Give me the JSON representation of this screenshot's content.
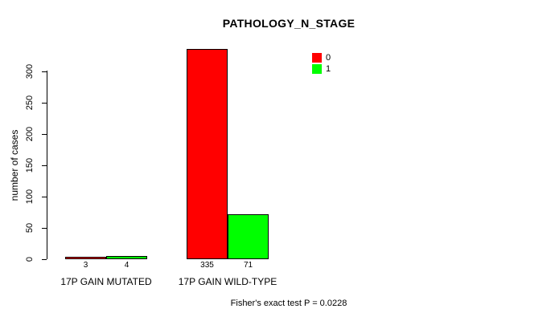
{
  "chart": {
    "title": "PATHOLOGY_N_STAGE",
    "ylabel": "number of cases",
    "footnote": "Fisher's exact test P = 0.0228"
  },
  "chart_data": {
    "type": "bar",
    "title": "PATHOLOGY_N_STAGE",
    "xlabel": "",
    "ylabel": "number of cases",
    "categories": [
      "17P GAIN MUTATED",
      "17P GAIN WILD-TYPE"
    ],
    "series": [
      {
        "name": "0",
        "color": "#ff0000",
        "values": [
          3,
          335
        ]
      },
      {
        "name": "1",
        "color": "#00ff00",
        "values": [
          4,
          71
        ]
      }
    ],
    "bar_labels_shown": true,
    "yticks": [
      0,
      50,
      100,
      150,
      200,
      250,
      300
    ],
    "ylim": [
      0,
      340
    ],
    "grid": false,
    "legend": {
      "position": "top-right",
      "entries": [
        {
          "label": "0",
          "color": "#ff0000"
        },
        {
          "label": "1",
          "color": "#00ff00"
        }
      ]
    },
    "annotation": "Fisher's exact test P = 0.0228"
  }
}
